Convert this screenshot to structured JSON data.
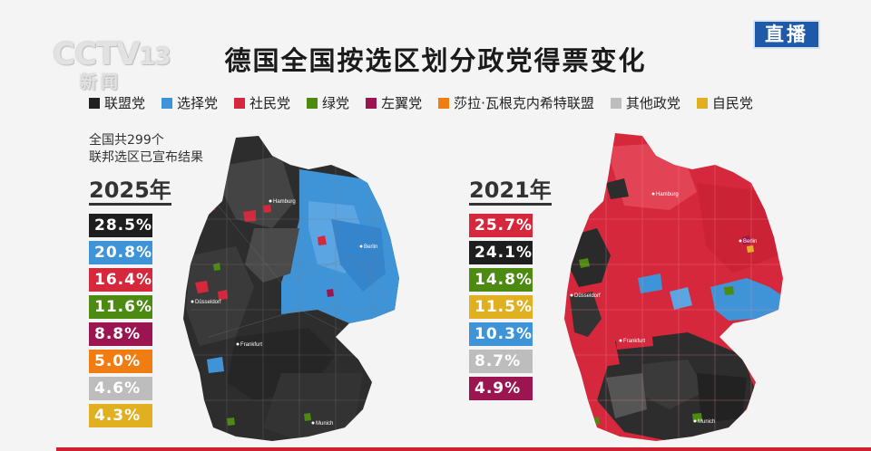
{
  "channel": {
    "logo_text": "CCTV",
    "logo_number": "13",
    "logo_sub": "新闻",
    "live_badge": "直播"
  },
  "title": "德国全国按选区划分政党得票变化",
  "legend": [
    {
      "label": "联盟党",
      "color": "#222222"
    },
    {
      "label": "选择党",
      "color": "#3f94d8"
    },
    {
      "label": "社民党",
      "color": "#d6283c"
    },
    {
      "label": "绿党",
      "color": "#4d8a12"
    },
    {
      "label": "左翼党",
      "color": "#9b1550"
    },
    {
      "label": "莎拉·瓦根克内希特联盟",
      "color": "#ef7d12"
    },
    {
      "label": "其他政党",
      "color": "#bdbdbd"
    },
    {
      "label": "自民党",
      "color": "#e0b020"
    }
  ],
  "note": {
    "line1": "全国共299个",
    "line2": "联邦选区已宣布结果"
  },
  "panels": [
    {
      "year": "2025年",
      "results": [
        {
          "value": "28.5%",
          "color": "#1e1e1e"
        },
        {
          "value": "20.8%",
          "color": "#3f94d8"
        },
        {
          "value": "16.4%",
          "color": "#d6283c"
        },
        {
          "value": "11.6%",
          "color": "#4d8a12"
        },
        {
          "value": "8.8%",
          "color": "#9b1550"
        },
        {
          "value": "5.0%",
          "color": "#ef7d12"
        },
        {
          "value": "4.6%",
          "color": "#bdbdbd"
        },
        {
          "value": "4.3%",
          "color": "#e0b020"
        }
      ],
      "cities": {
        "hamburg": "Hamburg",
        "berlin": "Berlin",
        "dusseldorf": "Düsseldorf",
        "frankfurt": "Frankfurt",
        "munich": "Munich"
      }
    },
    {
      "year": "2021年",
      "results": [
        {
          "value": "25.7%",
          "color": "#d6283c"
        },
        {
          "value": "24.1%",
          "color": "#1e1e1e"
        },
        {
          "value": "14.8%",
          "color": "#4d8a12"
        },
        {
          "value": "11.5%",
          "color": "#e0b020"
        },
        {
          "value": "10.3%",
          "color": "#3f94d8"
        },
        {
          "value": "8.7%",
          "color": "#bdbdbd"
        },
        {
          "value": "4.9%",
          "color": "#9b1550"
        }
      ],
      "cities": {
        "hamburg": "Hamburg",
        "berlin": "Berlin",
        "dusseldorf": "Düsseldorf",
        "frankfurt": "Frankfurt",
        "munich": "Munich"
      }
    }
  ]
}
